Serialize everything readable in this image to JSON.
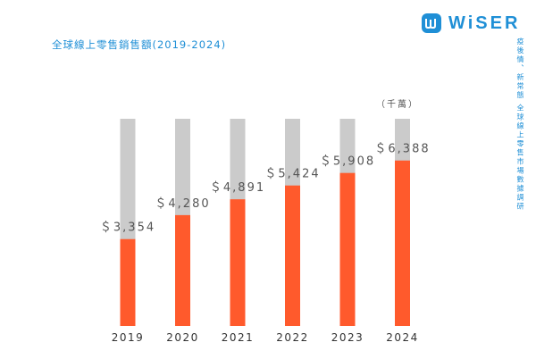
{
  "brand": {
    "name": "WiSER"
  },
  "side_note": "疫後情、新常態 全球線上零售市場數據調研",
  "colors": {
    "brand": "#1f8fd6",
    "bar_fill": "#ff5a2c",
    "bar_track": "#cbcbcb"
  },
  "chart_data": {
    "type": "bar",
    "title": "全球線上零售銷售額(2019-2024)",
    "unit_label": "（千萬）",
    "categories": [
      "2019",
      "2020",
      "2021",
      "2022",
      "2023",
      "2024"
    ],
    "values": [
      3354,
      4280,
      4891,
      5424,
      5908,
      6388
    ],
    "value_labels": [
      "＄3,354",
      "＄4,280",
      "＄4,891",
      "＄5,424",
      "＄5,908",
      "＄6,388"
    ],
    "ylim": [
      0,
      8000
    ],
    "grid": false,
    "legend": "none"
  }
}
